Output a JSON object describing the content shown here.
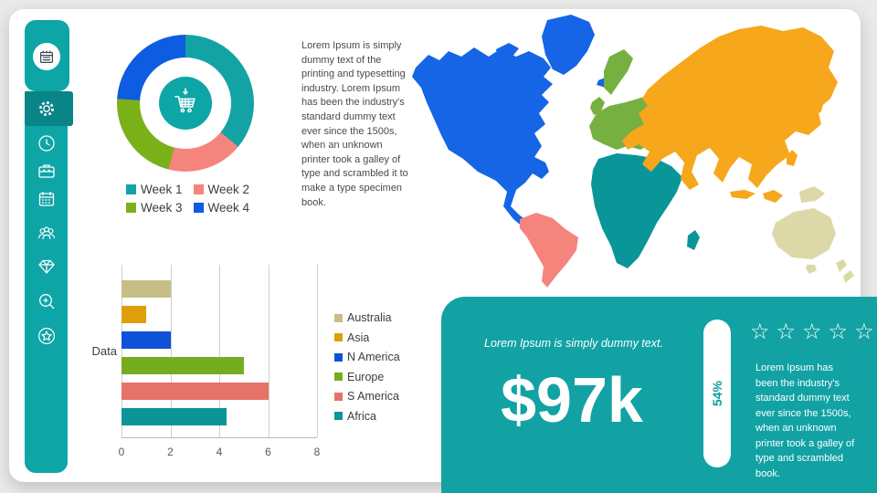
{
  "slide": {
    "background": "#eaeae8",
    "card_color": "#ffffff"
  },
  "brand": {
    "teal": "#0ea5a7",
    "teal_dark": "#0a8587"
  },
  "sidebar": {
    "items": [
      {
        "icon": "ledger-icon",
        "selected": false
      },
      {
        "icon": "gear-icon",
        "selected": true
      },
      {
        "icon": "clock-icon",
        "selected": false
      },
      {
        "icon": "briefcase-icon",
        "selected": false
      },
      {
        "icon": "calendar-icon",
        "selected": false
      },
      {
        "icon": "people-icon",
        "selected": false
      },
      {
        "icon": "diamond-icon",
        "selected": false
      },
      {
        "icon": "zoom-in-icon",
        "selected": false
      },
      {
        "icon": "star-icon",
        "selected": false
      }
    ]
  },
  "intro_text": "Lorem Ipsum is simply dummy text of the printing and typesetting industry. Lorem Ipsum has been the industry's standard dummy text ever since the 1500s, when an unknown printer took a galley of type and scrambled it to make a type specimen book.",
  "chart_data": [
    {
      "type": "donut",
      "legend_position": "bottom",
      "center_icon": "cart-download-icon",
      "series": [
        {
          "name": "Week 1",
          "value": 36,
          "color": "#14a3a5"
        },
        {
          "name": "Week 2",
          "value": 18,
          "color": "#f5847c"
        },
        {
          "name": "Week 3",
          "value": 22,
          "color": "#7ab119"
        },
        {
          "name": "Week 4",
          "value": 24,
          "color": "#0e5ce2"
        }
      ]
    },
    {
      "type": "bar",
      "orientation": "horizontal",
      "ylabel": "Data",
      "xlim": [
        0,
        8
      ],
      "xticks": [
        0,
        2,
        4,
        6,
        8
      ],
      "grid": true,
      "legend_position": "right",
      "series": [
        {
          "name": "Australia",
          "value": 2,
          "color": "#c6bf85"
        },
        {
          "name": "Asia",
          "value": 1,
          "color": "#df9f0a"
        },
        {
          "name": "N America",
          "value": 2,
          "color": "#0e52d8"
        },
        {
          "name": "Europe",
          "value": 5,
          "color": "#76ac1f"
        },
        {
          "name": "S America",
          "value": 6,
          "color": "#e57368"
        },
        {
          "name": "Africa",
          "value": 4.3,
          "color": "#0b9598"
        }
      ]
    }
  ],
  "map": {
    "regions": [
      {
        "name": "N America",
        "color": "#1565e6"
      },
      {
        "name": "S America",
        "color": "#f5847c"
      },
      {
        "name": "Europe",
        "color": "#76b041"
      },
      {
        "name": "Africa",
        "color": "#0a9699"
      },
      {
        "name": "Asia",
        "color": "#f6a71c"
      },
      {
        "name": "Australia",
        "color": "#dcd8a8"
      }
    ]
  },
  "panel": {
    "background": "#12a2a4",
    "heading": "Lorem Ipsum is simply dummy text.",
    "amount": "$97k",
    "percent": "54%",
    "stars": 5,
    "body": "Lorem Ipsum has been the industry's standard dummy text ever since the 1500s, when an unknown printer took a galley of type and scrambled book."
  }
}
